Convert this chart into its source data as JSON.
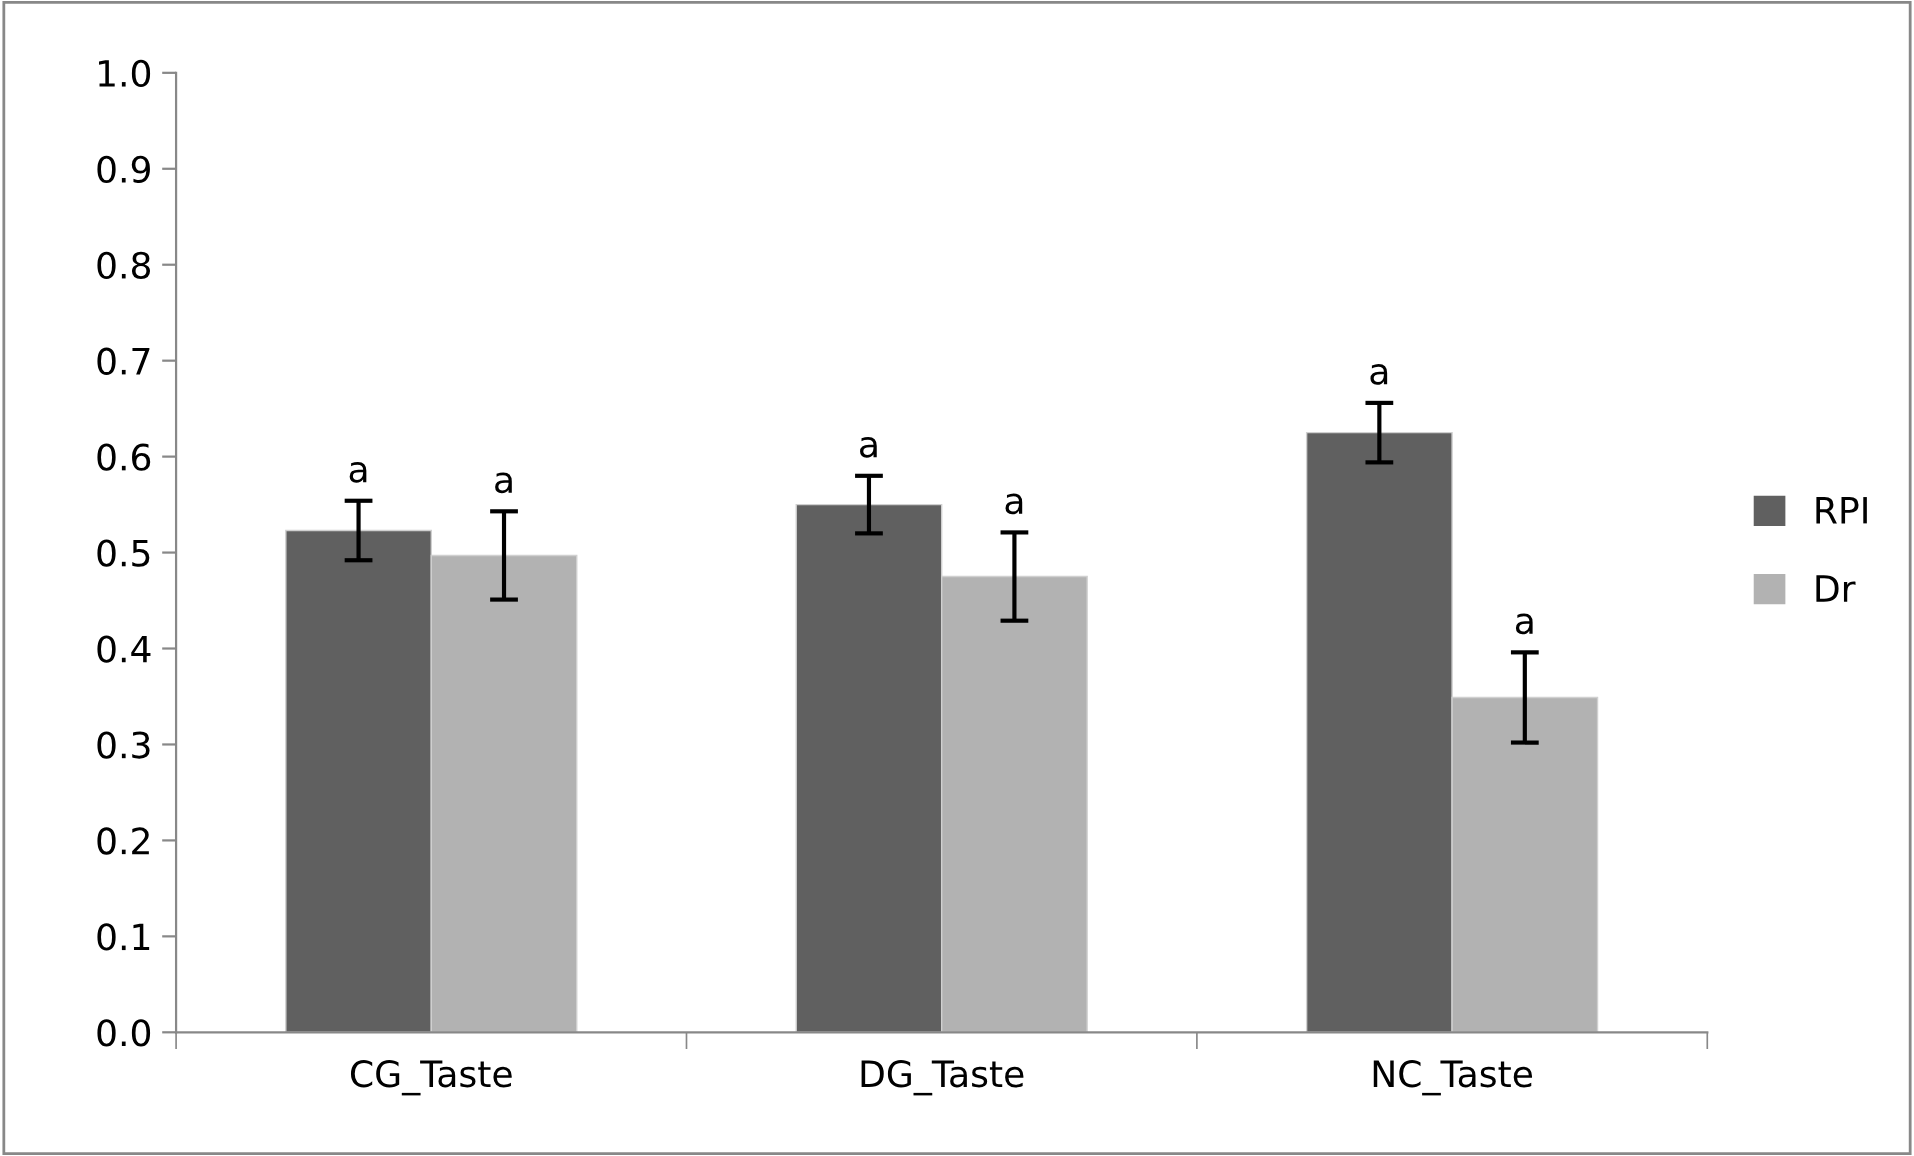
{
  "chart_data": {
    "type": "bar",
    "categories": [
      "CG_Taste",
      "DG_Taste",
      "NC_Taste"
    ],
    "series": [
      {
        "name": "RPI",
        "color": "#606060",
        "values": [
          0.523,
          0.55,
          0.625
        ],
        "errors": [
          0.031,
          0.03,
          0.031
        ]
      },
      {
        "name": "Dr",
        "color": "#b2b2b2",
        "values": [
          0.497,
          0.475,
          0.349
        ],
        "errors": [
          0.046,
          0.046,
          0.047
        ]
      }
    ],
    "ylim": [
      0,
      1.0
    ],
    "yticks": [
      {
        "value": 0,
        "label": "0.0"
      },
      0.1,
      0.2,
      0.3,
      0.4,
      0.5,
      0.6,
      0.7,
      0.8,
      0.9,
      {
        "value": 1.0,
        "label": "1.0"
      }
    ],
    "annotations": [
      "a",
      "a",
      "a",
      "a",
      "a",
      "a"
    ],
    "legend": "right",
    "grid": false
  }
}
